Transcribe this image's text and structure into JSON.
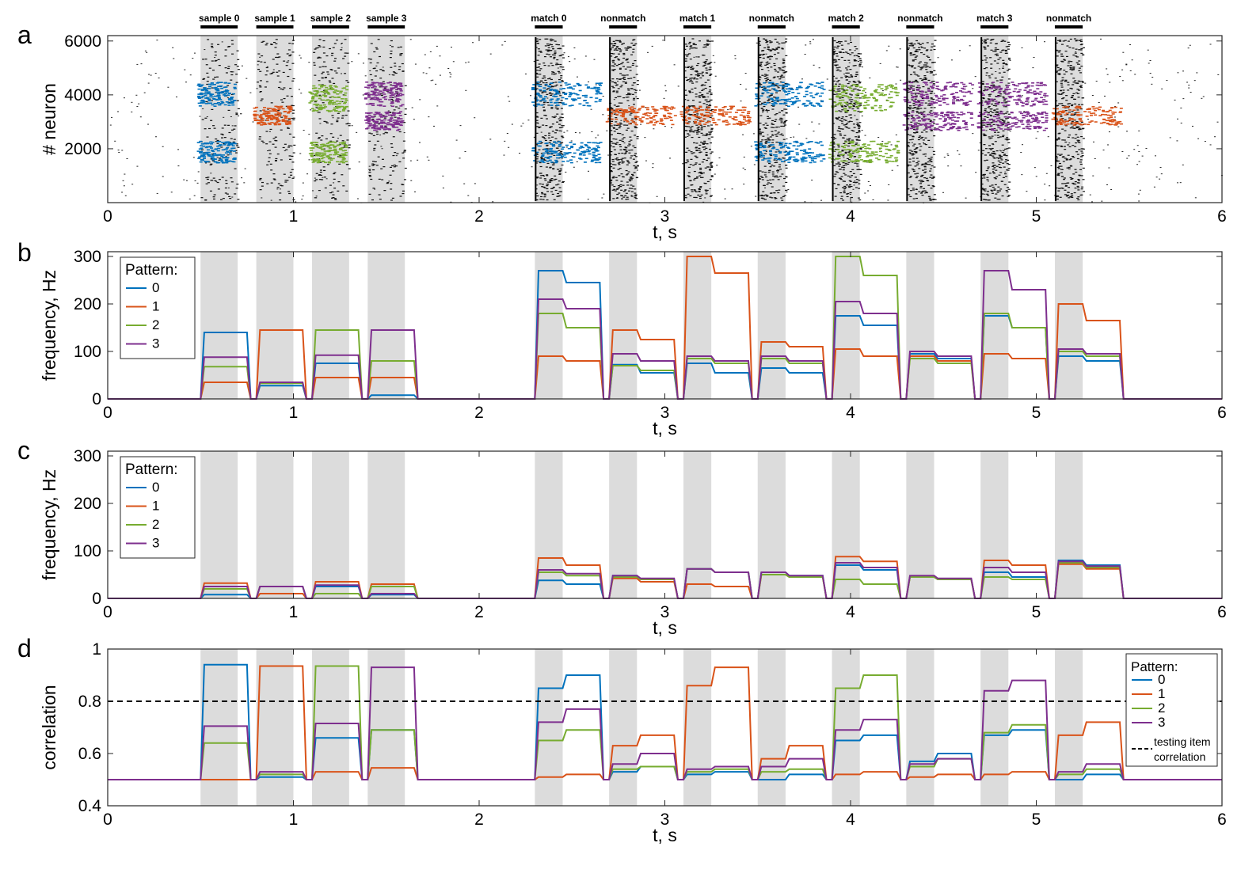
{
  "colors": {
    "pattern_0": "#0072BD",
    "pattern_1": "#D95319",
    "pattern_2": "#77AC30",
    "pattern_3": "#7E2F8E",
    "shade": "#dcdcdc",
    "threshold": "#000000"
  },
  "epochs": [
    {
      "label": "sample 0",
      "start": 0.5,
      "end": 0.7
    },
    {
      "label": "sample 1",
      "start": 0.8,
      "end": 1.0
    },
    {
      "label": "sample 2",
      "start": 1.1,
      "end": 1.3
    },
    {
      "label": "sample 3",
      "start": 1.4,
      "end": 1.6
    },
    {
      "label": "match 0",
      "start": 2.3,
      "end": 2.45
    },
    {
      "label": "nonmatch",
      "start": 2.7,
      "end": 2.85
    },
    {
      "label": "match 1",
      "start": 3.1,
      "end": 3.25
    },
    {
      "label": "nonmatch",
      "start": 3.5,
      "end": 3.65
    },
    {
      "label": "match 2",
      "start": 3.9,
      "end": 4.05
    },
    {
      "label": "nonmatch",
      "start": 4.3,
      "end": 4.45
    },
    {
      "label": "match 3",
      "start": 4.7,
      "end": 4.85
    },
    {
      "label": "nonmatch",
      "start": 5.1,
      "end": 5.25
    }
  ],
  "chart_data": [
    {
      "panel": "a",
      "type": "scatter",
      "xlabel": "t, s",
      "ylabel": "# neuron",
      "xlim": [
        0,
        6
      ],
      "ylim": [
        0,
        6200
      ],
      "xticks": [
        0,
        1,
        2,
        3,
        4,
        5,
        6
      ],
      "yticks": [
        2000,
        4000,
        6000
      ],
      "pattern_neuron_bands": [
        {
          "name": "0",
          "ranges": [
            [
              3600,
              4500
            ],
            [
              1500,
              2300
            ]
          ]
        },
        {
          "name": "1",
          "ranges": [
            [
              2900,
              3600
            ]
          ]
        },
        {
          "name": "2",
          "ranges": [
            [
              3400,
              4400
            ],
            [
              1500,
              2300
            ]
          ]
        },
        {
          "name": "3",
          "ranges": [
            [
              3600,
              4500
            ],
            [
              2700,
              3400
            ]
          ]
        }
      ]
    },
    {
      "panel": "b",
      "type": "line",
      "xlabel": "t, s",
      "ylabel": "frequency, Hz",
      "xlim": [
        0,
        6
      ],
      "ylim": [
        0,
        310
      ],
      "xticks": [
        0,
        1,
        2,
        3,
        4,
        5,
        6
      ],
      "yticks": [
        0,
        100,
        200,
        300
      ],
      "legend_title": "Pattern:",
      "legend_position": "top-left",
      "series": [
        {
          "name": "0",
          "levels": [
            [
              140,
              140
            ],
            [
              28,
              28
            ],
            [
              75,
              75
            ],
            [
              8,
              8
            ],
            [
              270,
              245
            ],
            [
              72,
              55
            ],
            [
              75,
              55
            ],
            [
              65,
              55
            ],
            [
              175,
              155
            ],
            [
              95,
              85
            ],
            [
              175,
              150
            ],
            [
              90,
              80
            ]
          ]
        },
        {
          "name": "1",
          "levels": [
            [
              35,
              35
            ],
            [
              145,
              145
            ],
            [
              45,
              45
            ],
            [
              45,
              45
            ],
            [
              90,
              80
            ],
            [
              145,
              125
            ],
            [
              300,
              265
            ],
            [
              120,
              110
            ],
            [
              105,
              90
            ],
            [
              90,
              80
            ],
            [
              95,
              85
            ],
            [
              200,
              165
            ]
          ]
        },
        {
          "name": "2",
          "levels": [
            [
              68,
              68
            ],
            [
              33,
              33
            ],
            [
              145,
              145
            ],
            [
              80,
              80
            ],
            [
              180,
              150
            ],
            [
              70,
              60
            ],
            [
              85,
              75
            ],
            [
              85,
              75
            ],
            [
              300,
              260
            ],
            [
              85,
              75
            ],
            [
              180,
              150
            ],
            [
              100,
              90
            ]
          ]
        },
        {
          "name": "3",
          "levels": [
            [
              88,
              88
            ],
            [
              35,
              35
            ],
            [
              92,
              92
            ],
            [
              145,
              145
            ],
            [
              210,
              190
            ],
            [
              95,
              80
            ],
            [
              90,
              80
            ],
            [
              90,
              80
            ],
            [
              205,
              180
            ],
            [
              100,
              90
            ],
            [
              270,
              230
            ],
            [
              105,
              95
            ]
          ]
        }
      ]
    },
    {
      "panel": "c",
      "type": "line",
      "xlabel": "t, s",
      "ylabel": "frequency, Hz",
      "xlim": [
        0,
        6
      ],
      "ylim": [
        0,
        310
      ],
      "xticks": [
        0,
        1,
        2,
        3,
        4,
        5,
        6
      ],
      "yticks": [
        0,
        100,
        200,
        300
      ],
      "legend_title": "Pattern:",
      "legend_position": "top-left",
      "series": [
        {
          "name": "0",
          "levels": [
            [
              8,
              8
            ],
            [
              25,
              25
            ],
            [
              25,
              25
            ],
            [
              8,
              8
            ],
            [
              38,
              30
            ],
            [
              48,
              40
            ],
            [
              62,
              55
            ],
            [
              55,
              48
            ],
            [
              70,
              60
            ],
            [
              45,
              40
            ],
            [
              55,
              45
            ],
            [
              80,
              70
            ]
          ]
        },
        {
          "name": "1",
          "levels": [
            [
              32,
              32
            ],
            [
              10,
              10
            ],
            [
              35,
              35
            ],
            [
              30,
              30
            ],
            [
              85,
              70
            ],
            [
              42,
              35
            ],
            [
              30,
              25
            ],
            [
              50,
              45
            ],
            [
              88,
              78
            ],
            [
              45,
              40
            ],
            [
              80,
              70
            ],
            [
              72,
              62
            ]
          ]
        },
        {
          "name": "2",
          "levels": [
            [
              20,
              20
            ],
            [
              25,
              25
            ],
            [
              10,
              10
            ],
            [
              25,
              25
            ],
            [
              55,
              48
            ],
            [
              45,
              40
            ],
            [
              62,
              55
            ],
            [
              50,
              45
            ],
            [
              40,
              30
            ],
            [
              45,
              40
            ],
            [
              45,
              40
            ],
            [
              75,
              65
            ]
          ]
        },
        {
          "name": "3",
          "levels": [
            [
              25,
              25
            ],
            [
              25,
              25
            ],
            [
              28,
              28
            ],
            [
              10,
              10
            ],
            [
              60,
              52
            ],
            [
              48,
              42
            ],
            [
              62,
              55
            ],
            [
              55,
              48
            ],
            [
              75,
              65
            ],
            [
              48,
              42
            ],
            [
              65,
              55
            ],
            [
              78,
              68
            ]
          ]
        }
      ]
    },
    {
      "panel": "d",
      "type": "line",
      "xlabel": "t, s",
      "ylabel": "correlation",
      "xlim": [
        0,
        6
      ],
      "ylim": [
        0.4,
        1
      ],
      "xticks": [
        0,
        1,
        2,
        3,
        4,
        5,
        6
      ],
      "yticks": [
        0.4,
        0.6,
        0.8,
        1
      ],
      "ytick_labels": [
        "0.4",
        "0.6",
        "0.8",
        "1"
      ],
      "legend_title": "Pattern:",
      "legend_position": "top-right",
      "threshold": {
        "value": 0.8,
        "label_line1": "testing item",
        "label_line2": "correlation"
      },
      "series": [
        {
          "name": "0",
          "levels": [
            [
              0.94,
              0.94
            ],
            [
              0.51,
              0.51
            ],
            [
              0.66,
              0.66
            ],
            [
              0.69,
              0.69
            ],
            [
              0.85,
              0.9
            ],
            [
              0.53,
              0.55
            ],
            [
              0.52,
              0.53
            ],
            [
              0.5,
              0.52
            ],
            [
              0.65,
              0.67
            ],
            [
              0.57,
              0.6
            ],
            [
              0.67,
              0.69
            ],
            [
              0.5,
              0.52
            ]
          ]
        },
        {
          "name": "1",
          "levels": [
            [
              0.5,
              0.5
            ],
            [
              0.935,
              0.935
            ],
            [
              0.53,
              0.53
            ],
            [
              0.545,
              0.545
            ],
            [
              0.51,
              0.52
            ],
            [
              0.63,
              0.67
            ],
            [
              0.86,
              0.93
            ],
            [
              0.58,
              0.63
            ],
            [
              0.52,
              0.53
            ],
            [
              0.51,
              0.52
            ],
            [
              0.52,
              0.53
            ],
            [
              0.67,
              0.72
            ]
          ]
        },
        {
          "name": "2",
          "levels": [
            [
              0.64,
              0.64
            ],
            [
              0.52,
              0.52
            ],
            [
              0.935,
              0.935
            ],
            [
              0.69,
              0.69
            ],
            [
              0.65,
              0.69
            ],
            [
              0.54,
              0.55
            ],
            [
              0.53,
              0.54
            ],
            [
              0.53,
              0.54
            ],
            [
              0.85,
              0.9
            ],
            [
              0.55,
              0.58
            ],
            [
              0.68,
              0.71
            ],
            [
              0.52,
              0.54
            ]
          ]
        },
        {
          "name": "3",
          "levels": [
            [
              0.705,
              0.705
            ],
            [
              0.53,
              0.53
            ],
            [
              0.715,
              0.715
            ],
            [
              0.93,
              0.93
            ],
            [
              0.72,
              0.77
            ],
            [
              0.56,
              0.6
            ],
            [
              0.54,
              0.55
            ],
            [
              0.55,
              0.58
            ],
            [
              0.69,
              0.73
            ],
            [
              0.56,
              0.58
            ],
            [
              0.84,
              0.88
            ],
            [
              0.53,
              0.56
            ]
          ]
        }
      ]
    }
  ]
}
